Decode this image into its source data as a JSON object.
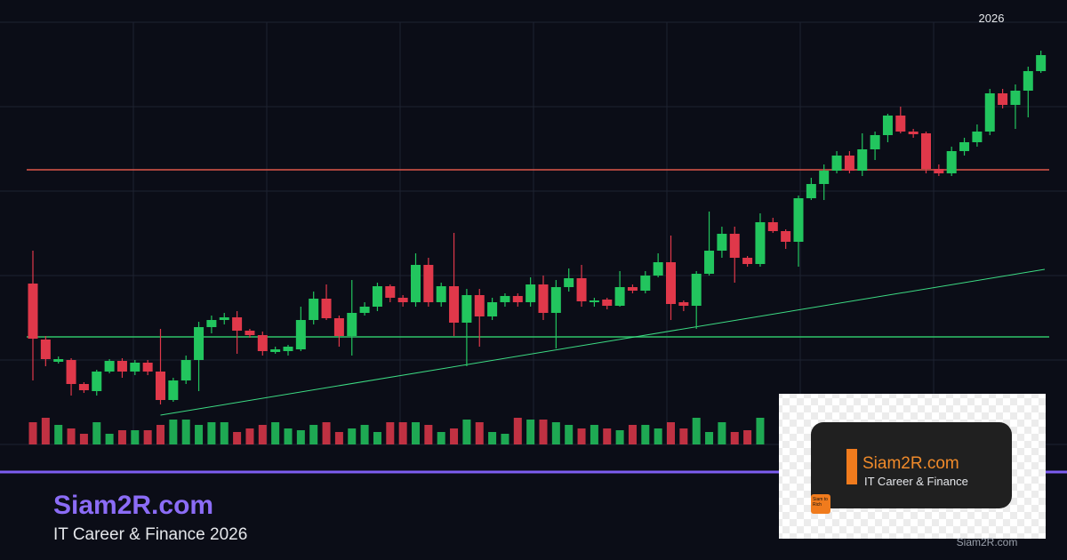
{
  "chart_data": {
    "type": "candlestick",
    "year_label": "2026",
    "ylim": [
      0,
      475
    ],
    "up_color": "#22c55e",
    "down_color": "#e0384a",
    "open": [
      181,
      118,
      93,
      95,
      68,
      60,
      82,
      94,
      82,
      92,
      82,
      50,
      72,
      95,
      132,
      140,
      143,
      128,
      123,
      104,
      105,
      107,
      140,
      164,
      142,
      122,
      148,
      155,
      178,
      165,
      160,
      202,
      160,
      178,
      137,
      168,
      144,
      160,
      167,
      160,
      180,
      148,
      177,
      187,
      160,
      163,
      156,
      177,
      173,
      190,
      205,
      160,
      156,
      192,
      218,
      237,
      210,
      203,
      250,
      240,
      228,
      277,
      293,
      308,
      325,
      308,
      332,
      348,
      370,
      352,
      350,
      310,
      305,
      330,
      340,
      352,
      395,
      382,
      398,
      420
    ],
    "high": [
      218,
      122,
      99,
      97,
      70,
      84,
      96,
      97,
      95,
      95,
      130,
      75,
      100,
      138,
      145,
      148,
      150,
      130,
      127,
      110,
      112,
      155,
      172,
      180,
      145,
      185,
      160,
      182,
      180,
      168,
      215,
      210,
      182,
      238,
      175,
      175,
      165,
      170,
      170,
      188,
      190,
      185,
      198,
      202,
      165,
      165,
      195,
      180,
      195,
      215,
      235,
      162,
      195,
      262,
      245,
      245,
      212,
      260,
      255,
      242,
      280,
      300,
      315,
      330,
      330,
      350,
      352,
      372,
      380,
      355,
      352,
      315,
      335,
      345,
      360,
      400,
      400,
      405,
      425,
      443
    ],
    "low": [
      72,
      88,
      91,
      55,
      58,
      55,
      80,
      75,
      78,
      78,
      45,
      48,
      68,
      60,
      125,
      135,
      102,
      120,
      100,
      102,
      100,
      105,
      135,
      140,
      110,
      100,
      145,
      150,
      160,
      155,
      155,
      155,
      155,
      122,
      88,
      110,
      140,
      155,
      155,
      155,
      140,
      108,
      172,
      155,
      155,
      152,
      155,
      170,
      170,
      188,
      140,
      150,
      130,
      190,
      210,
      182,
      200,
      200,
      238,
      220,
      200,
      275,
      275,
      305,
      305,
      302,
      320,
      340,
      350,
      345,
      305,
      302,
      302,
      325,
      335,
      348,
      378,
      355,
      368,
      418
    ],
    "close": [
      119,
      96,
      96,
      68,
      61,
      82,
      94,
      82,
      92,
      82,
      50,
      72,
      95,
      132,
      140,
      143,
      128,
      123,
      105,
      107,
      110,
      140,
      164,
      142,
      122,
      148,
      155,
      178,
      165,
      160,
      202,
      160,
      178,
      137,
      168,
      144,
      160,
      167,
      160,
      180,
      148,
      177,
      187,
      161,
      162,
      156,
      177,
      173,
      190,
      205,
      158,
      156,
      192,
      218,
      237,
      210,
      203,
      250,
      240,
      228,
      277,
      293,
      308,
      325,
      308,
      332,
      348,
      370,
      352,
      349,
      310,
      305,
      330,
      340,
      352,
      395,
      382,
      398,
      420,
      438
    ],
    "volume": [
      25,
      30,
      22,
      18,
      12,
      25,
      12,
      16,
      16,
      16,
      22,
      28,
      28,
      22,
      25,
      25,
      14,
      18,
      22,
      25,
      18,
      16,
      22,
      25,
      14,
      18,
      22,
      14,
      25,
      25,
      25,
      22,
      14,
      18,
      28,
      25,
      14,
      12,
      30,
      28,
      28,
      25,
      22,
      18,
      22,
      18,
      16,
      22,
      22,
      18,
      25,
      18,
      30,
      14,
      25,
      14,
      16,
      30,
      null,
      null,
      null,
      null,
      null,
      null,
      null,
      null,
      null,
      null,
      null,
      null,
      null,
      null,
      null,
      null,
      null,
      null,
      null,
      null,
      null,
      null
    ],
    "resistance": 309,
    "support": 121,
    "trendline": {
      "from": [
        10,
        33
      ],
      "to": [
        79.3,
        197
      ]
    }
  },
  "brand": {
    "title": "Siam2R.com",
    "subtitle": "IT Career & Finance 2026"
  },
  "logo": {
    "title": "Siam2R.com",
    "subtitle": "IT Career & Finance",
    "badge": "Siam to Rich"
  },
  "footer": "Siam2R.com"
}
